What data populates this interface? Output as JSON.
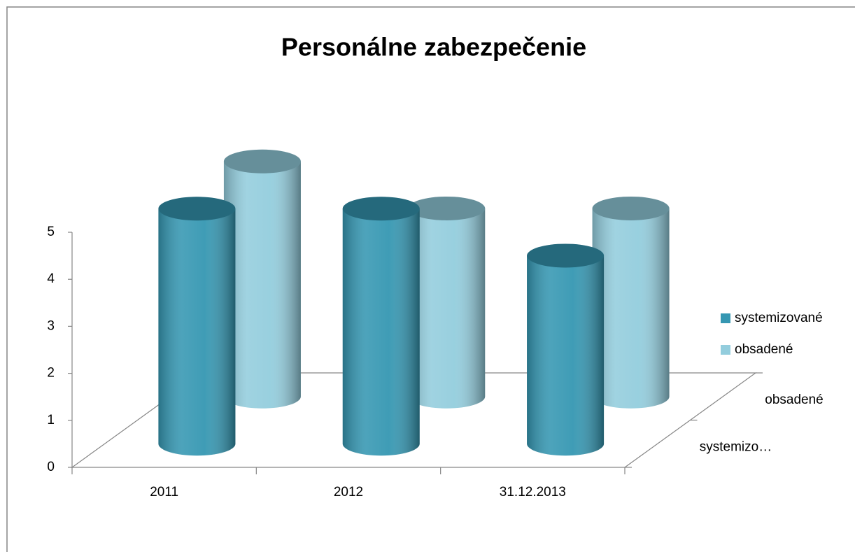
{
  "chart_data": {
    "type": "bar3d",
    "title": "Personálne zabezpečenie",
    "categories": [
      "2011",
      "2012",
      "31.12.2013"
    ],
    "series": [
      {
        "name": "systemizované",
        "color": "#3597b2",
        "values": [
          5,
          5,
          4
        ]
      },
      {
        "name": "obsadené",
        "color": "#93cddd",
        "values": [
          5,
          4,
          4
        ]
      }
    ],
    "depth_labels": [
      "systemizo…",
      "obsadené"
    ],
    "ylim": [
      0,
      5
    ],
    "yticks": [
      0,
      1,
      2,
      3,
      4,
      5
    ],
    "legend": "right"
  }
}
